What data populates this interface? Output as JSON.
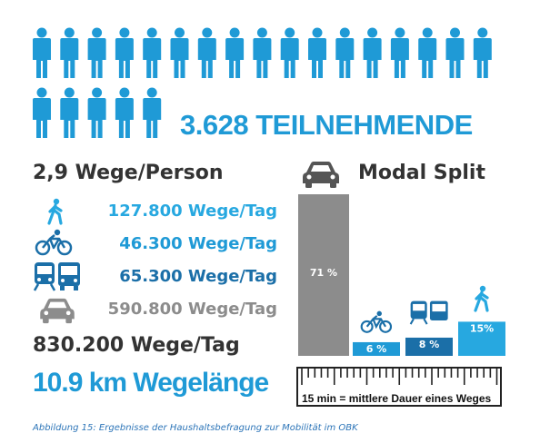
{
  "colors": {
    "blue": "#1f9ad6",
    "dark_blue": "#1b6fa8",
    "gray": "#8c8c8c",
    "dark_text": "#333333",
    "caption_blue": "#2d75b8"
  },
  "headline": "3.628 TEILNEHMENDE",
  "wege_person": "2,9 Wege/Person",
  "modal_split_title": "Modal Split",
  "rows": [
    {
      "mode": "walk",
      "icon": "walking-person-icon",
      "text": "127.800 Wege/Tag",
      "color": "#27a8e0"
    },
    {
      "mode": "bike",
      "icon": "bicycle-icon",
      "text": "46.300 Wege/Tag",
      "color": "#1f9ad6"
    },
    {
      "mode": "transit",
      "icon": "train-bus-icon",
      "text": "65.300 Wege/Tag",
      "color": "#1b6fa8"
    },
    {
      "mode": "car",
      "icon": "car-icon",
      "text": "590.800 Wege/Tag",
      "color": "#8c8c8c"
    }
  ],
  "total": "830.200 Wege/Tag",
  "distance": "10.9 km Wegelänge",
  "ruler_label": "15 min = mittlere Dauer eines Weges",
  "caption": "Abbildung 15: Ergebnisse der Haushaltsbefragung zur Mobilität im OBK",
  "chart_data": {
    "type": "bar",
    "title": "Modal Split",
    "categories": [
      "car",
      "bike",
      "transit",
      "walk"
    ],
    "values": [
      71,
      6,
      8,
      15
    ],
    "labels": [
      "71 %",
      "6 %",
      "8 %",
      "15%"
    ],
    "colors": [
      "#8c8c8c",
      "#1f9ad6",
      "#1b6fa8",
      "#27a8e0"
    ],
    "icons": [
      "car-icon",
      "bicycle-icon",
      "train-bus-icon",
      "walking-person-icon"
    ],
    "ylim": [
      0,
      71
    ]
  }
}
